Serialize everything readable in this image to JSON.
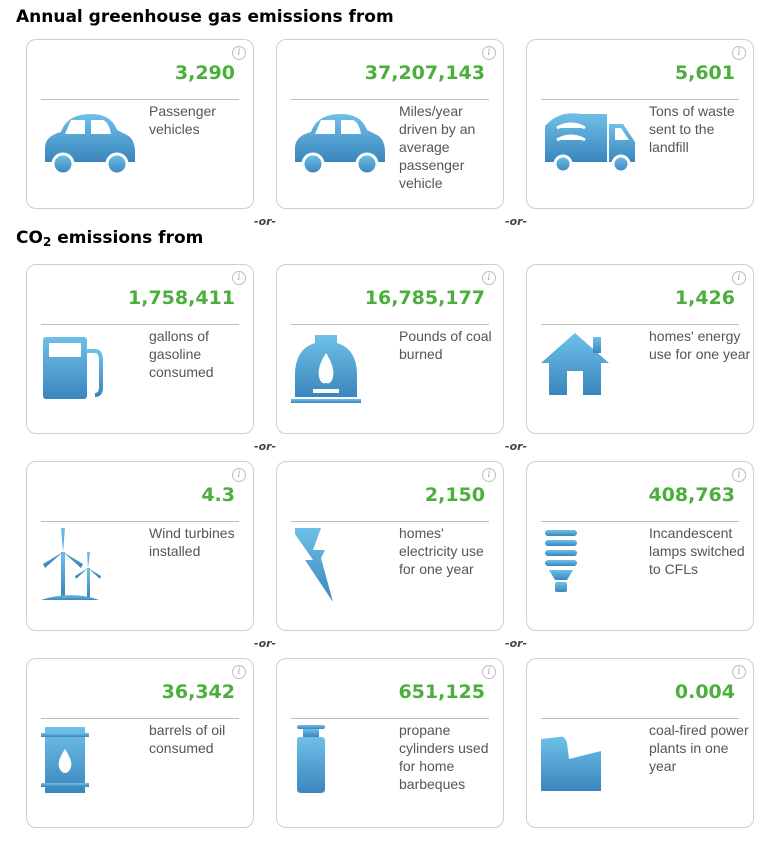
{
  "sections": {
    "greenhouse_title": "Annual greenhouse gas emissions from",
    "co2_title_prefix": "CO",
    "co2_title_sub": "2",
    "co2_title_suffix": " emissions from"
  },
  "separator": "-or-",
  "colors": {
    "value": "#4caf3d",
    "icon": "#4a9fd0"
  },
  "cards": [
    {
      "value": "3,290",
      "label": "Passenger vehicles",
      "icon": "car-icon"
    },
    {
      "value": "37,207,143",
      "label": "Miles/year driven by an average passenger vehicle",
      "icon": "car-icon"
    },
    {
      "value": "5,601",
      "label": "Tons of waste sent to the landfill",
      "icon": "garbage-truck-icon"
    },
    {
      "value": "1,758,411",
      "label": "gallons of gasoline consumed",
      "icon": "gas-pump-icon"
    },
    {
      "value": "16,785,177",
      "label": "Pounds of coal burned",
      "icon": "coal-furnace-icon"
    },
    {
      "value": "1,426",
      "label": "homes' energy use for one year",
      "icon": "house-icon"
    },
    {
      "value": "4.3",
      "label": "Wind turbines installed",
      "icon": "wind-turbine-icon"
    },
    {
      "value": "2,150",
      "label": "homes' electricity use for one year",
      "icon": "lightning-bolt-icon"
    },
    {
      "value": "408,763",
      "label": "Incandescent lamps switched to CFLs",
      "icon": "cfl-bulb-icon"
    },
    {
      "value": "36,342",
      "label": "barrels of oil consumed",
      "icon": "oil-barrel-icon"
    },
    {
      "value": "651,125",
      "label": "propane cylinders used for home barbeques",
      "icon": "propane-cylinder-icon"
    },
    {
      "value": "0.004",
      "label": "coal-fired power plants in one year",
      "icon": "power-plant-icon"
    }
  ]
}
